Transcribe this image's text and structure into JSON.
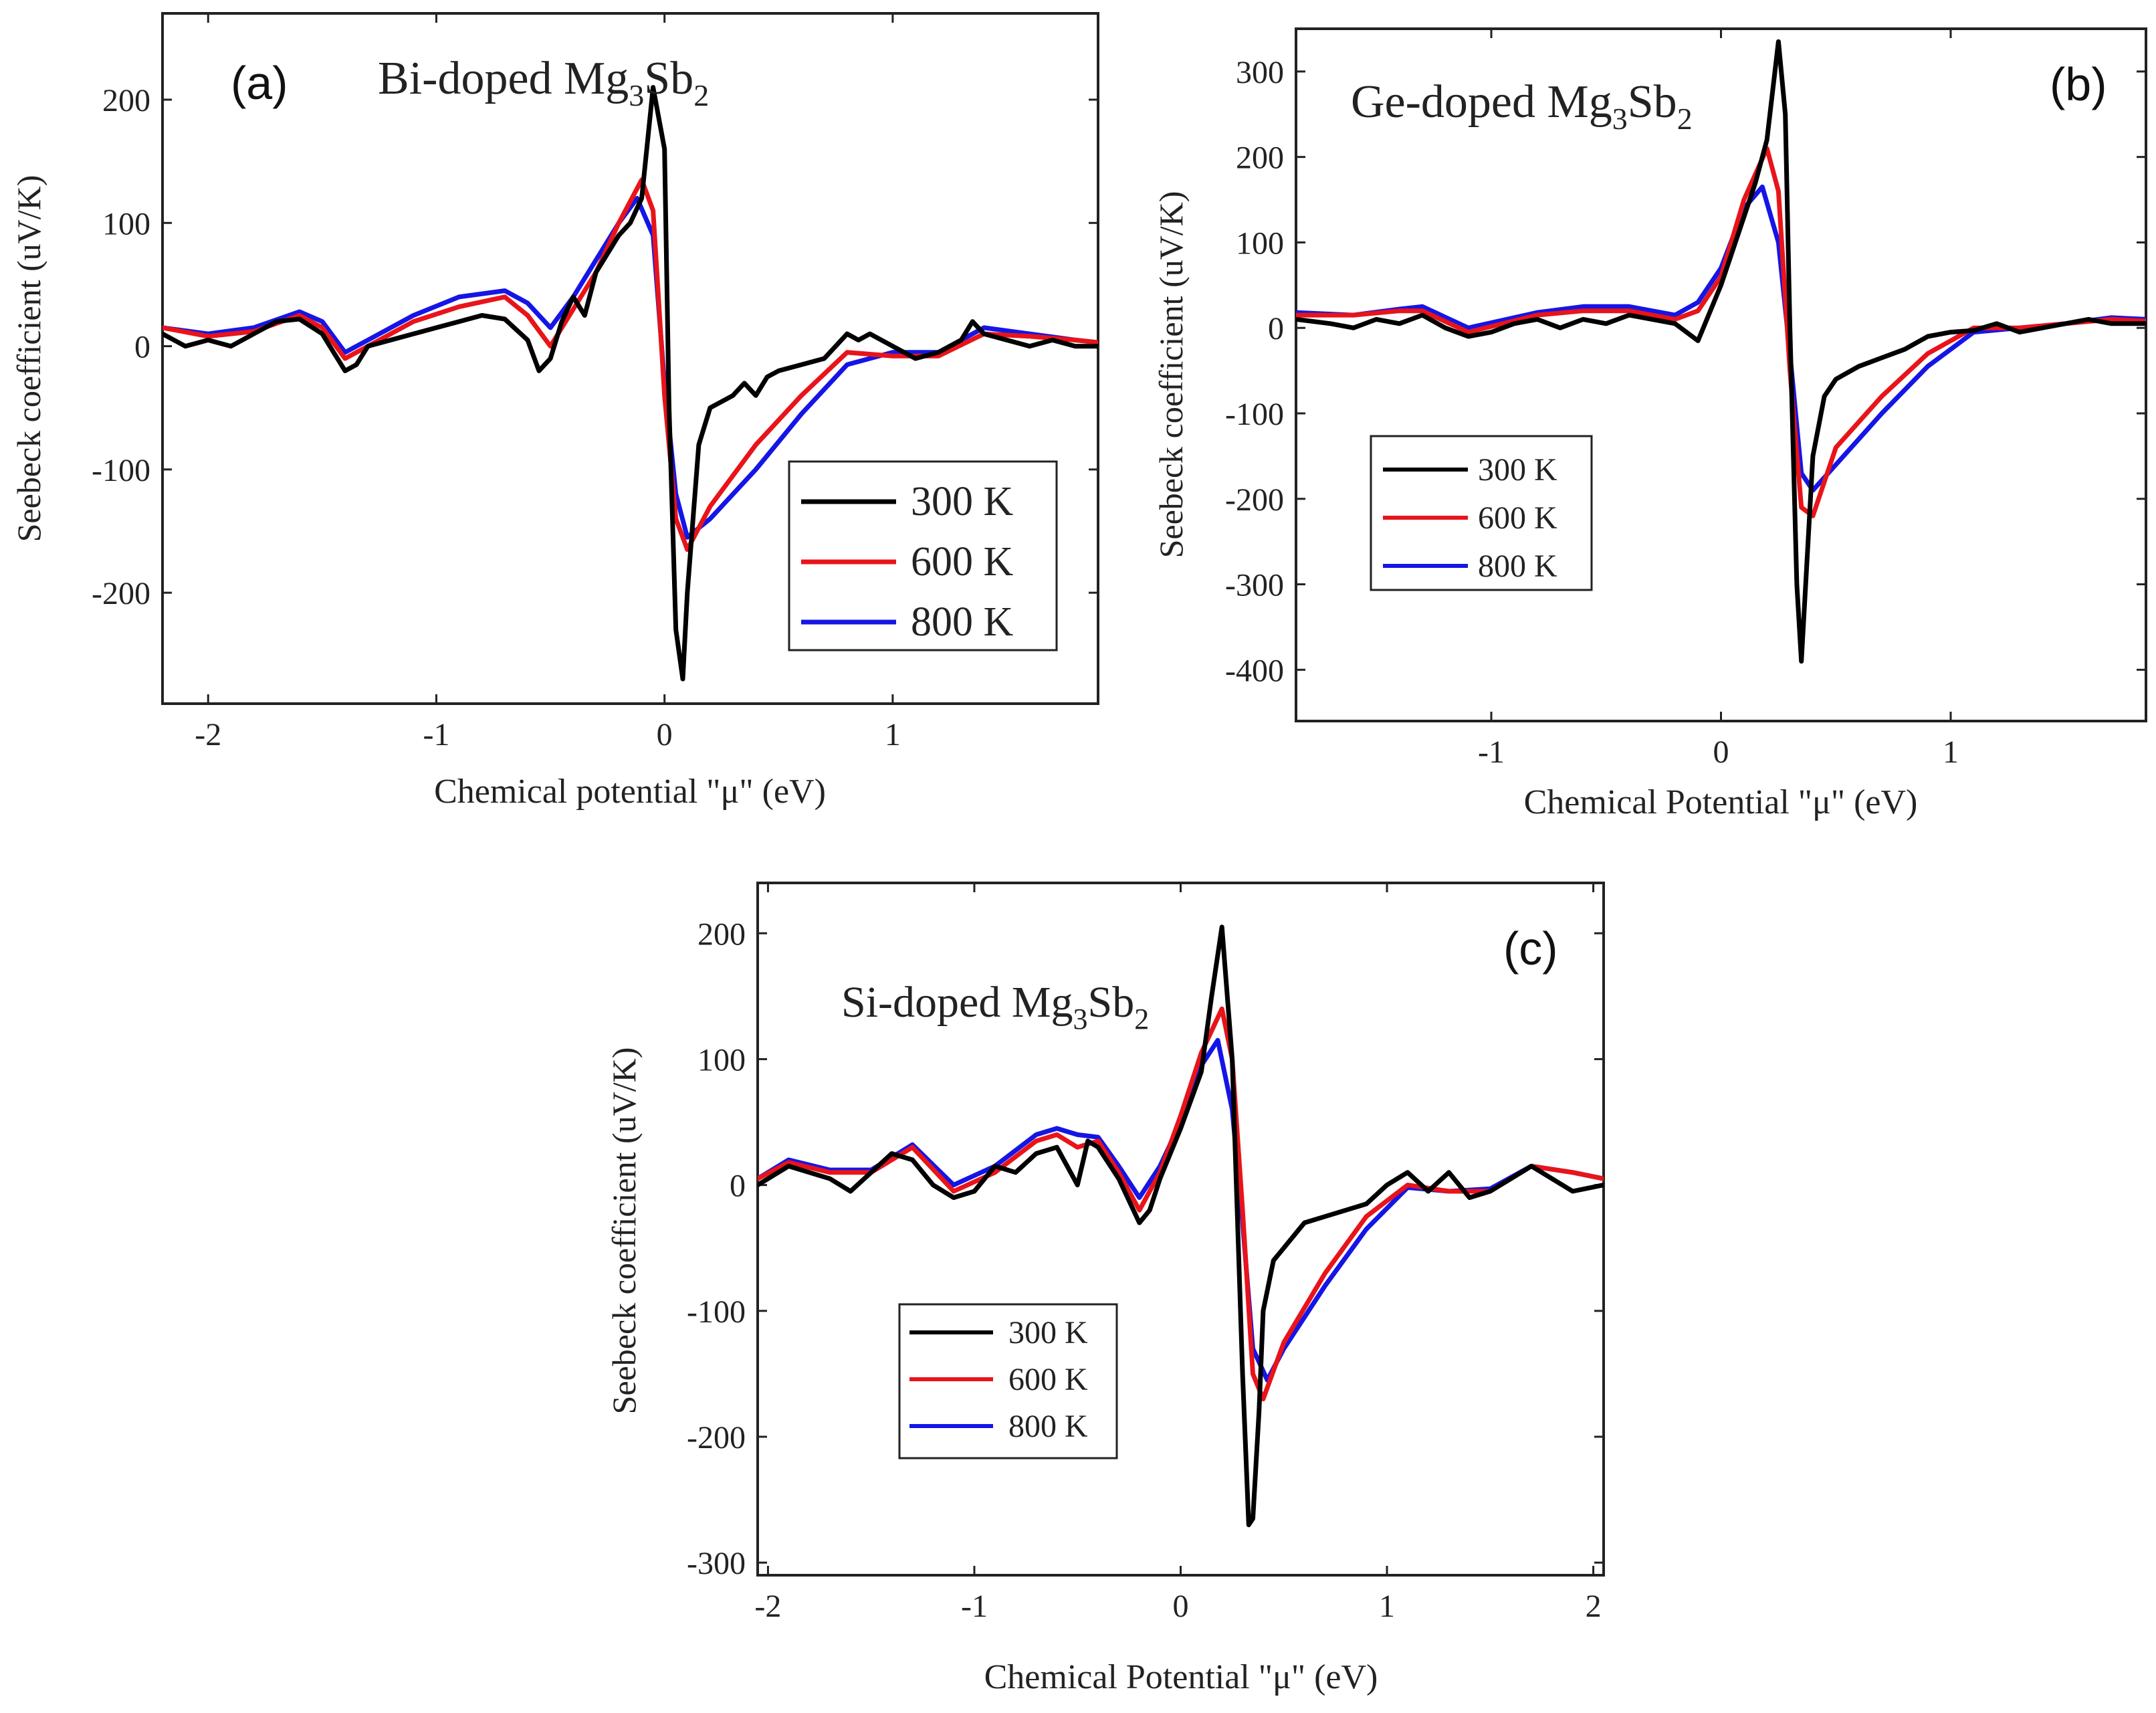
{
  "figure": {
    "colors": {
      "300 K": "#000000",
      "600 K": "#e8141a",
      "800 K": "#1515e6"
    }
  },
  "chart_data": [
    {
      "panel": "a",
      "panel_label": "(a)",
      "type": "line",
      "title": {
        "prefix": "Bi-doped Mg",
        "sub1": "3",
        "mid": "Sb",
        "sub2": "2"
      },
      "xlabel": "Chemical potential \"μ\" (eV)",
      "ylabel": "Seebeck coefficient (uV/K)",
      "xlim": [
        -2.2,
        1.9
      ],
      "ylim": [
        -290,
        270
      ],
      "xticks": [
        -2,
        -1,
        0,
        1
      ],
      "xtick_labels": [
        "-2",
        "-1",
        "0",
        "1"
      ],
      "yticks": [
        -200,
        -100,
        0,
        100,
        200
      ],
      "ytick_labels": [
        "-200",
        "-100",
        "0",
        "100",
        "200"
      ],
      "legend_position": "right",
      "legend": [
        "300 K",
        "600 K",
        "800 K"
      ],
      "series": [
        {
          "name": "300 K",
          "x": [
            -2.2,
            -2.1,
            -2.0,
            -1.9,
            -1.8,
            -1.7,
            -1.6,
            -1.5,
            -1.45,
            -1.4,
            -1.35,
            -1.3,
            -1.2,
            -1.1,
            -1.0,
            -0.9,
            -0.8,
            -0.7,
            -0.6,
            -0.55,
            -0.5,
            -0.45,
            -0.4,
            -0.35,
            -0.3,
            -0.2,
            -0.15,
            -0.1,
            -0.05,
            0.0,
            0.02,
            0.05,
            0.08,
            0.1,
            0.15,
            0.2,
            0.3,
            0.35,
            0.4,
            0.45,
            0.5,
            0.6,
            0.7,
            0.75,
            0.8,
            0.85,
            0.9,
            1.0,
            1.1,
            1.2,
            1.3,
            1.35,
            1.4,
            1.5,
            1.6,
            1.7,
            1.8,
            1.9
          ],
          "y": [
            10,
            0,
            5,
            0,
            10,
            20,
            22,
            10,
            -5,
            -20,
            -15,
            0,
            5,
            10,
            15,
            20,
            25,
            22,
            5,
            -20,
            -10,
            20,
            40,
            25,
            60,
            90,
            100,
            120,
            210,
            160,
            -50,
            -230,
            -270,
            -200,
            -80,
            -50,
            -40,
            -30,
            -40,
            -25,
            -20,
            -15,
            -10,
            0,
            10,
            5,
            10,
            0,
            -10,
            -5,
            5,
            20,
            10,
            5,
            0,
            5,
            0,
            0
          ]
        },
        {
          "name": "600 K",
          "x": [
            -2.2,
            -2.0,
            -1.8,
            -1.6,
            -1.5,
            -1.4,
            -1.3,
            -1.1,
            -0.9,
            -0.7,
            -0.6,
            -0.5,
            -0.4,
            -0.3,
            -0.2,
            -0.1,
            -0.05,
            0.0,
            0.05,
            0.1,
            0.2,
            0.4,
            0.6,
            0.8,
            1.0,
            1.2,
            1.4,
            1.6,
            1.8,
            1.9
          ],
          "y": [
            15,
            8,
            12,
            25,
            15,
            -10,
            0,
            20,
            32,
            40,
            25,
            0,
            30,
            60,
            100,
            135,
            110,
            -40,
            -140,
            -165,
            -130,
            -80,
            -40,
            -5,
            -8,
            -8,
            10,
            8,
            5,
            3
          ]
        },
        {
          "name": "800 K",
          "x": [
            -2.2,
            -2.0,
            -1.8,
            -1.6,
            -1.5,
            -1.4,
            -1.3,
            -1.1,
            -0.9,
            -0.7,
            -0.6,
            -0.5,
            -0.4,
            -0.3,
            -0.2,
            -0.12,
            -0.05,
            0.0,
            0.05,
            0.1,
            0.2,
            0.4,
            0.6,
            0.8,
            1.0,
            1.2,
            1.4,
            1.6,
            1.8,
            1.9
          ],
          "y": [
            15,
            10,
            15,
            28,
            20,
            -5,
            5,
            25,
            40,
            45,
            35,
            15,
            40,
            70,
            100,
            120,
            90,
            -30,
            -120,
            -155,
            -140,
            -100,
            -55,
            -15,
            -5,
            -5,
            15,
            10,
            5,
            3
          ]
        }
      ]
    },
    {
      "panel": "b",
      "panel_label": "(b)",
      "type": "line",
      "title": {
        "prefix": "Ge-doped Mg",
        "sub1": "3",
        "mid": "Sb",
        "sub2": "2"
      },
      "xlabel": "Chemical Potential \"μ\" (eV)",
      "ylabel": "Seebeck coefficient (uV/K)",
      "xlim": [
        -1.85,
        1.85
      ],
      "ylim": [
        -460,
        350
      ],
      "xticks": [
        -1,
        0,
        1
      ],
      "xtick_labels": [
        "-1",
        "0",
        "1"
      ],
      "yticks": [
        -400,
        -300,
        -200,
        -100,
        0,
        100,
        200,
        300
      ],
      "ytick_labels": [
        "-400",
        "-300",
        "-200",
        "-100",
        "0",
        "100",
        "200",
        "300"
      ],
      "legend_position": "left",
      "legend": [
        "300 K",
        "600 K",
        "800 K"
      ],
      "series": [
        {
          "name": "300 K",
          "x": [
            -1.85,
            -1.7,
            -1.6,
            -1.5,
            -1.4,
            -1.3,
            -1.2,
            -1.1,
            -1.0,
            -0.9,
            -0.8,
            -0.7,
            -0.6,
            -0.5,
            -0.4,
            -0.3,
            -0.2,
            -0.1,
            0.0,
            0.1,
            0.15,
            0.2,
            0.25,
            0.28,
            0.3,
            0.33,
            0.35,
            0.4,
            0.45,
            0.5,
            0.6,
            0.7,
            0.8,
            0.9,
            1.0,
            1.1,
            1.2,
            1.3,
            1.4,
            1.5,
            1.6,
            1.7,
            1.85
          ],
          "y": [
            10,
            5,
            0,
            10,
            5,
            15,
            0,
            -10,
            -5,
            5,
            10,
            0,
            10,
            5,
            15,
            10,
            5,
            -15,
            50,
            130,
            170,
            220,
            335,
            250,
            0,
            -300,
            -390,
            -150,
            -80,
            -60,
            -45,
            -35,
            -25,
            -10,
            -5,
            -3,
            5,
            -5,
            0,
            5,
            10,
            5,
            5
          ]
        },
        {
          "name": "600 K",
          "x": [
            -1.85,
            -1.6,
            -1.4,
            -1.3,
            -1.1,
            -0.8,
            -0.6,
            -0.4,
            -0.2,
            -0.1,
            0.0,
            0.1,
            0.2,
            0.25,
            0.3,
            0.35,
            0.4,
            0.5,
            0.7,
            0.9,
            1.1,
            1.3,
            1.5,
            1.7,
            1.85
          ],
          "y": [
            15,
            15,
            20,
            20,
            -5,
            15,
            20,
            20,
            10,
            20,
            60,
            150,
            210,
            160,
            -50,
            -210,
            -220,
            -140,
            -80,
            -30,
            0,
            0,
            5,
            10,
            8
          ]
        },
        {
          "name": "800 K",
          "x": [
            -1.85,
            -1.6,
            -1.4,
            -1.3,
            -1.1,
            -0.8,
            -0.6,
            -0.4,
            -0.2,
            -0.1,
            0.0,
            0.1,
            0.18,
            0.25,
            0.3,
            0.35,
            0.4,
            0.5,
            0.7,
            0.9,
            1.1,
            1.3,
            1.5,
            1.7,
            1.85
          ],
          "y": [
            18,
            15,
            22,
            25,
            0,
            18,
            25,
            25,
            15,
            30,
            70,
            140,
            165,
            100,
            -30,
            -170,
            -190,
            -160,
            -100,
            -45,
            -5,
            0,
            5,
            12,
            10
          ]
        }
      ]
    },
    {
      "panel": "c",
      "panel_label": "(c)",
      "type": "line",
      "title": {
        "prefix": "Si-doped Mg",
        "sub1": "3",
        "mid": "Sb",
        "sub2": "2"
      },
      "xlabel": "Chemical Potential \"μ\" (eV)",
      "ylabel": "Seebeck coefficient (uV/K)",
      "xlim": [
        -2.05,
        2.05
      ],
      "ylim": [
        -310,
        240
      ],
      "xticks": [
        -2,
        -1,
        0,
        1,
        2
      ],
      "xtick_labels": [
        "-2",
        "-1",
        "0",
        "1",
        "2"
      ],
      "yticks": [
        -300,
        -200,
        -100,
        0,
        100,
        200
      ],
      "ytick_labels": [
        "-300",
        "-200",
        "-100",
        "0",
        "100",
        "200"
      ],
      "legend_position": "left",
      "legend": [
        "300 K",
        "600 K",
        "800 K"
      ],
      "series": [
        {
          "name": "300 K",
          "x": [
            -2.05,
            -1.9,
            -1.8,
            -1.7,
            -1.6,
            -1.5,
            -1.4,
            -1.3,
            -1.2,
            -1.1,
            -1.0,
            -0.9,
            -0.8,
            -0.7,
            -0.6,
            -0.5,
            -0.45,
            -0.4,
            -0.3,
            -0.2,
            -0.15,
            -0.1,
            0.0,
            0.1,
            0.15,
            0.2,
            0.25,
            0.3,
            0.33,
            0.35,
            0.38,
            0.4,
            0.45,
            0.5,
            0.55,
            0.6,
            0.7,
            0.8,
            0.9,
            1.0,
            1.1,
            1.2,
            1.3,
            1.4,
            1.5,
            1.6,
            1.7,
            1.8,
            1.9,
            2.05
          ],
          "y": [
            0,
            15,
            10,
            5,
            -5,
            10,
            25,
            20,
            0,
            -10,
            -5,
            15,
            10,
            25,
            30,
            0,
            35,
            30,
            5,
            -30,
            -20,
            5,
            45,
            90,
            150,
            205,
            100,
            -150,
            -270,
            -265,
            -180,
            -100,
            -60,
            -50,
            -40,
            -30,
            -25,
            -20,
            -15,
            0,
            10,
            -5,
            10,
            -10,
            -5,
            5,
            15,
            5,
            -5,
            0
          ]
        },
        {
          "name": "600 K",
          "x": [
            -2.05,
            -1.9,
            -1.7,
            -1.5,
            -1.3,
            -1.1,
            -0.9,
            -0.7,
            -0.6,
            -0.5,
            -0.4,
            -0.3,
            -0.2,
            -0.1,
            0.0,
            0.1,
            0.2,
            0.25,
            0.3,
            0.35,
            0.4,
            0.5,
            0.7,
            0.9,
            1.1,
            1.3,
            1.5,
            1.7,
            1.9,
            2.05
          ],
          "y": [
            5,
            18,
            10,
            10,
            30,
            -5,
            10,
            35,
            40,
            30,
            35,
            10,
            -20,
            10,
            55,
            105,
            140,
            100,
            -20,
            -150,
            -170,
            -125,
            -70,
            -25,
            0,
            -5,
            -5,
            15,
            10,
            5
          ]
        },
        {
          "name": "800 K",
          "x": [
            -2.05,
            -1.9,
            -1.7,
            -1.5,
            -1.3,
            -1.1,
            -0.9,
            -0.7,
            -0.6,
            -0.5,
            -0.4,
            -0.3,
            -0.2,
            -0.1,
            0.0,
            0.1,
            0.18,
            0.25,
            0.3,
            0.35,
            0.42,
            0.5,
            0.7,
            0.9,
            1.1,
            1.3,
            1.5,
            1.7,
            1.9,
            2.05
          ],
          "y": [
            5,
            20,
            12,
            12,
            32,
            0,
            15,
            40,
            45,
            40,
            38,
            15,
            -10,
            15,
            50,
            95,
            115,
            60,
            -30,
            -130,
            -155,
            -130,
            -80,
            -35,
            -2,
            -5,
            -3,
            15,
            10,
            5
          ]
        }
      ]
    }
  ]
}
